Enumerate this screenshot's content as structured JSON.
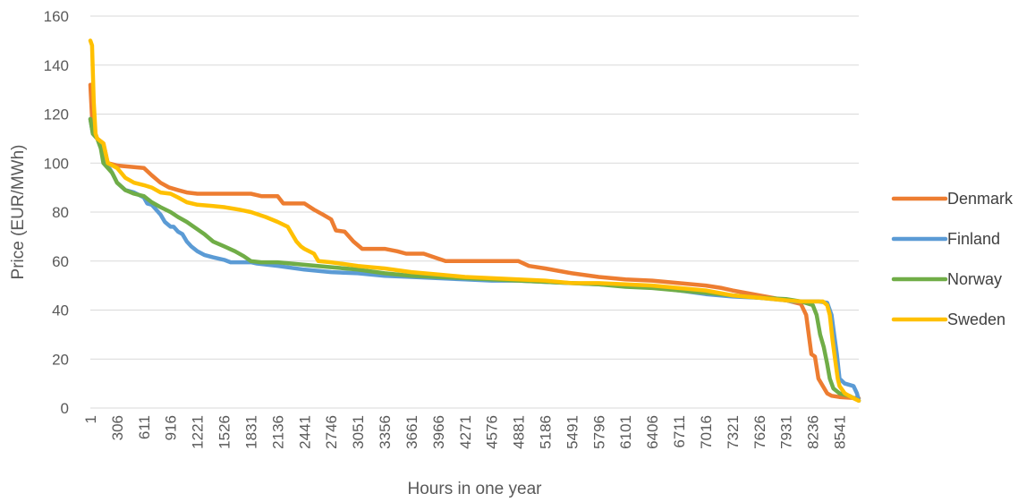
{
  "chart_data": {
    "type": "line",
    "title": "",
    "xlabel": "Hours in one year",
    "ylabel": "Price (EUR/MWh)",
    "xlim": [
      1,
      8760
    ],
    "ylim": [
      0,
      160
    ],
    "yticks": [
      0,
      20,
      40,
      60,
      80,
      100,
      120,
      140,
      160
    ],
    "xtick_labels": [
      "1",
      "306",
      "611",
      "916",
      "1221",
      "1526",
      "1831",
      "2136",
      "2441",
      "2746",
      "3051",
      "3356",
      "3661",
      "3966",
      "4271",
      "4576",
      "4881",
      "5186",
      "5491",
      "5796",
      "6101",
      "6406",
      "6711",
      "7016",
      "7321",
      "7626",
      "7931",
      "8236",
      "8541"
    ],
    "grid": true,
    "legend_position": "right",
    "series": [
      {
        "name": "Denmark",
        "color": "#ED7D31",
        "points": [
          [
            1,
            132
          ],
          [
            30,
            112
          ],
          [
            80,
            110
          ],
          [
            150,
            108
          ],
          [
            200,
            100
          ],
          [
            306,
            99
          ],
          [
            611,
            98
          ],
          [
            700,
            95
          ],
          [
            800,
            92
          ],
          [
            900,
            90
          ],
          [
            1000,
            89
          ],
          [
            1100,
            88
          ],
          [
            1221,
            87.5
          ],
          [
            1526,
            87.5
          ],
          [
            1831,
            87.5
          ],
          [
            1950,
            86.5
          ],
          [
            2136,
            86.5
          ],
          [
            2200,
            83.5
          ],
          [
            2300,
            83.5
          ],
          [
            2441,
            83.5
          ],
          [
            2550,
            81
          ],
          [
            2650,
            79
          ],
          [
            2746,
            77
          ],
          [
            2800,
            72.5
          ],
          [
            2900,
            72
          ],
          [
            3000,
            68
          ],
          [
            3100,
            65
          ],
          [
            3356,
            65
          ],
          [
            3500,
            64
          ],
          [
            3600,
            63
          ],
          [
            3800,
            63
          ],
          [
            3966,
            61
          ],
          [
            4050,
            60
          ],
          [
            4271,
            60
          ],
          [
            4576,
            60
          ],
          [
            4881,
            60
          ],
          [
            5000,
            58
          ],
          [
            5186,
            57
          ],
          [
            5491,
            55
          ],
          [
            5796,
            53.5
          ],
          [
            6101,
            52.5
          ],
          [
            6406,
            52
          ],
          [
            6711,
            51
          ],
          [
            7016,
            50
          ],
          [
            7200,
            49
          ],
          [
            7321,
            48
          ],
          [
            7626,
            46
          ],
          [
            7931,
            44
          ],
          [
            8100,
            42.5
          ],
          [
            8160,
            38
          ],
          [
            8190,
            30
          ],
          [
            8220,
            22
          ],
          [
            8260,
            21
          ],
          [
            8300,
            12
          ],
          [
            8350,
            9
          ],
          [
            8400,
            6
          ],
          [
            8450,
            5
          ],
          [
            8541,
            4.5
          ],
          [
            8760,
            4
          ]
        ]
      },
      {
        "name": "Finland",
        "color": "#5B9BD5",
        "points": [
          [
            1,
            118
          ],
          [
            30,
            112
          ],
          [
            80,
            110
          ],
          [
            120,
            108
          ],
          [
            150,
            102
          ],
          [
            200,
            99
          ],
          [
            250,
            96
          ],
          [
            306,
            92
          ],
          [
            400,
            89
          ],
          [
            500,
            88
          ],
          [
            611,
            86
          ],
          [
            650,
            83.5
          ],
          [
            700,
            83
          ],
          [
            800,
            79
          ],
          [
            850,
            76
          ],
          [
            916,
            74
          ],
          [
            950,
            74
          ],
          [
            1000,
            72
          ],
          [
            1050,
            71
          ],
          [
            1100,
            68
          ],
          [
            1150,
            66
          ],
          [
            1221,
            64
          ],
          [
            1300,
            62.5
          ],
          [
            1400,
            61.5
          ],
          [
            1526,
            60.5
          ],
          [
            1600,
            59.5
          ],
          [
            1831,
            59.5
          ],
          [
            1900,
            59
          ],
          [
            2136,
            58
          ],
          [
            2441,
            56.5
          ],
          [
            2746,
            55.5
          ],
          [
            3051,
            55
          ],
          [
            3356,
            54
          ],
          [
            3661,
            53.5
          ],
          [
            3966,
            53
          ],
          [
            4271,
            52.5
          ],
          [
            4576,
            52
          ],
          [
            4881,
            52
          ],
          [
            5186,
            51.5
          ],
          [
            5491,
            51
          ],
          [
            5796,
            50.5
          ],
          [
            6101,
            50
          ],
          [
            6406,
            49.5
          ],
          [
            6711,
            48
          ],
          [
            7016,
            46.5
          ],
          [
            7321,
            45.5
          ],
          [
            7626,
            45
          ],
          [
            7931,
            44
          ],
          [
            8000,
            43.5
          ],
          [
            8300,
            43.5
          ],
          [
            8400,
            43
          ],
          [
            8450,
            38
          ],
          [
            8480,
            30
          ],
          [
            8510,
            22
          ],
          [
            8541,
            12
          ],
          [
            8600,
            10
          ],
          [
            8700,
            9
          ],
          [
            8740,
            6
          ],
          [
            8760,
            3
          ]
        ]
      },
      {
        "name": "Norway",
        "color": "#70AD47",
        "points": [
          [
            1,
            118
          ],
          [
            30,
            112
          ],
          [
            80,
            110
          ],
          [
            120,
            106
          ],
          [
            150,
            100
          ],
          [
            200,
            98
          ],
          [
            250,
            96
          ],
          [
            306,
            92
          ],
          [
            400,
            89
          ],
          [
            500,
            87.5
          ],
          [
            611,
            86.5
          ],
          [
            700,
            84
          ],
          [
            800,
            82
          ],
          [
            916,
            80
          ],
          [
            1000,
            78
          ],
          [
            1100,
            76
          ],
          [
            1221,
            73
          ],
          [
            1300,
            71
          ],
          [
            1400,
            68
          ],
          [
            1526,
            66
          ],
          [
            1650,
            64
          ],
          [
            1750,
            62
          ],
          [
            1831,
            60
          ],
          [
            1950,
            59.5
          ],
          [
            2136,
            59.5
          ],
          [
            2441,
            58.5
          ],
          [
            2746,
            57.5
          ],
          [
            3051,
            56.5
          ],
          [
            3356,
            55
          ],
          [
            3661,
            54
          ],
          [
            3966,
            53.5
          ],
          [
            4271,
            53
          ],
          [
            4576,
            52.5
          ],
          [
            4881,
            52
          ],
          [
            5186,
            51.5
          ],
          [
            5491,
            51
          ],
          [
            5796,
            50.5
          ],
          [
            6101,
            49.5
          ],
          [
            6406,
            49
          ],
          [
            6711,
            48
          ],
          [
            7016,
            47
          ],
          [
            7321,
            46
          ],
          [
            7626,
            45
          ],
          [
            7931,
            44.5
          ],
          [
            8100,
            43.5
          ],
          [
            8236,
            42
          ],
          [
            8280,
            38
          ],
          [
            8320,
            30
          ],
          [
            8360,
            25
          ],
          [
            8400,
            18
          ],
          [
            8430,
            12
          ],
          [
            8470,
            8
          ],
          [
            8541,
            6
          ],
          [
            8650,
            5
          ],
          [
            8760,
            3
          ]
        ]
      },
      {
        "name": "Sweden",
        "color": "#FFC000",
        "points": [
          [
            1,
            150
          ],
          [
            20,
            148
          ],
          [
            40,
            125
          ],
          [
            60,
            112
          ],
          [
            80,
            110
          ],
          [
            150,
            108
          ],
          [
            200,
            100
          ],
          [
            306,
            98
          ],
          [
            400,
            94
          ],
          [
            500,
            92
          ],
          [
            611,
            91
          ],
          [
            700,
            90
          ],
          [
            800,
            88
          ],
          [
            916,
            87.5
          ],
          [
            1000,
            86
          ],
          [
            1100,
            84
          ],
          [
            1221,
            83
          ],
          [
            1400,
            82.5
          ],
          [
            1526,
            82
          ],
          [
            1700,
            81
          ],
          [
            1831,
            80
          ],
          [
            2000,
            78
          ],
          [
            2136,
            76
          ],
          [
            2250,
            74
          ],
          [
            2300,
            71
          ],
          [
            2350,
            68
          ],
          [
            2400,
            66
          ],
          [
            2441,
            65
          ],
          [
            2550,
            63
          ],
          [
            2600,
            60
          ],
          [
            2746,
            59.5
          ],
          [
            3051,
            58
          ],
          [
            3356,
            57
          ],
          [
            3661,
            55.5
          ],
          [
            3966,
            54.5
          ],
          [
            4271,
            53.5
          ],
          [
            4576,
            53
          ],
          [
            4881,
            52.5
          ],
          [
            5186,
            52
          ],
          [
            5491,
            51
          ],
          [
            5796,
            51
          ],
          [
            6101,
            50.5
          ],
          [
            6406,
            50
          ],
          [
            6711,
            49
          ],
          [
            7016,
            48
          ],
          [
            7321,
            46
          ],
          [
            7626,
            45
          ],
          [
            7931,
            44
          ],
          [
            8100,
            43.5
          ],
          [
            8350,
            43.5
          ],
          [
            8400,
            42
          ],
          [
            8430,
            38
          ],
          [
            8460,
            28
          ],
          [
            8490,
            20
          ],
          [
            8520,
            12
          ],
          [
            8541,
            9
          ],
          [
            8600,
            6
          ],
          [
            8650,
            5
          ],
          [
            8700,
            4
          ],
          [
            8760,
            3
          ]
        ]
      }
    ]
  }
}
